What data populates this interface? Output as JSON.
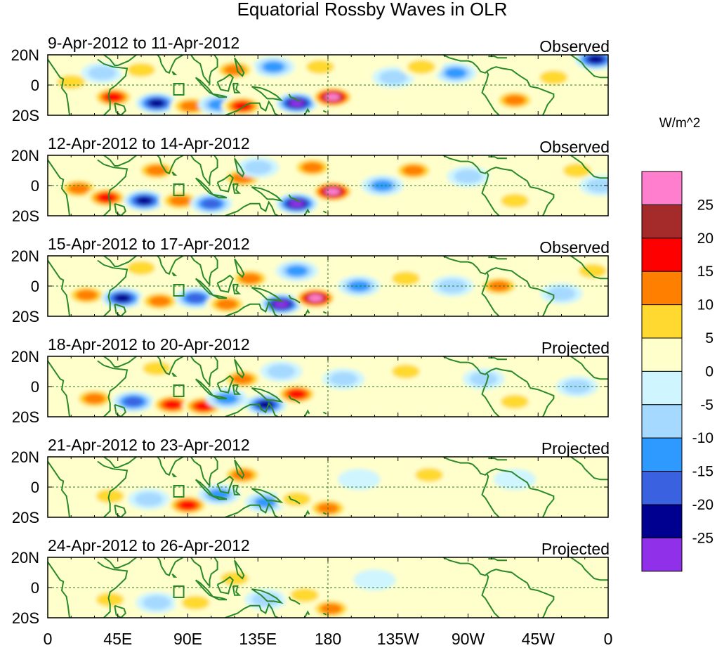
{
  "title": "Equatorial Rossby Waves in OLR",
  "units_label": "W/m^2",
  "panels": [
    {
      "date_range": "9-Apr-2012 to 11-Apr-2012",
      "type": "Observed"
    },
    {
      "date_range": "12-Apr-2012 to 14-Apr-2012",
      "type": "Observed"
    },
    {
      "date_range": "15-Apr-2012 to 17-Apr-2012",
      "type": "Observed"
    },
    {
      "date_range": "18-Apr-2012 to 20-Apr-2012",
      "type": "Projected"
    },
    {
      "date_range": "21-Apr-2012 to 23-Apr-2012",
      "type": "Projected"
    },
    {
      "date_range": "24-Apr-2012 to 26-Apr-2012",
      "type": "Projected"
    }
  ],
  "lat_labels": [
    "20N",
    "0",
    "20S"
  ],
  "lon_labels": [
    "0",
    "45E",
    "90E",
    "135E",
    "180",
    "135W",
    "90W",
    "45W",
    "0"
  ],
  "colorbar": {
    "labels": [
      "25",
      "20",
      "15",
      "10",
      "5",
      "0",
      "-5",
      "-10",
      "-15",
      "-20",
      "-25"
    ],
    "colors": [
      "#ff7fce",
      "#a52a2a",
      "#ff0000",
      "#ff7f00",
      "#ffd92f",
      "#ffffcc",
      "#cff5ff",
      "#a6d9ff",
      "#2e99ff",
      "#3a62e0",
      "#000090",
      "#9030e8"
    ]
  },
  "chart_data": {
    "type": "heatmap",
    "title": "Equatorial Rossby Waves in OLR",
    "units": "W/m^2",
    "lon_range": [
      0,
      360
    ],
    "lat_range": [
      -20,
      20
    ],
    "x_ticks": [
      "0",
      "45E",
      "90E",
      "135E",
      "180",
      "135W",
      "90W",
      "45W",
      "0"
    ],
    "y_ticks": [
      "20N",
      "0",
      "20S"
    ],
    "levels": [
      -25,
      -20,
      -15,
      -10,
      -5,
      0,
      5,
      10,
      15,
      20,
      25
    ],
    "anomalies": [
      [
        {
          "lon": 15,
          "lat": 2,
          "v": 8
        },
        {
          "lon": 35,
          "lat": 8,
          "v": -5
        },
        {
          "lon": 42,
          "lat": -8,
          "v": 16
        },
        {
          "lon": 70,
          "lat": -12,
          "v": -23
        },
        {
          "lon": 92,
          "lat": -14,
          "v": 14
        },
        {
          "lon": 110,
          "lat": -13,
          "v": -12
        },
        {
          "lon": 125,
          "lat": -14,
          "v": 15
        },
        {
          "lon": 160,
          "lat": -12,
          "v": -27
        },
        {
          "lon": 183,
          "lat": -8,
          "v": 27
        },
        {
          "lon": 175,
          "lat": 12,
          "v": 8
        },
        {
          "lon": 145,
          "lat": 12,
          "v": -10
        },
        {
          "lon": 120,
          "lat": 10,
          "v": 12
        },
        {
          "lon": 222,
          "lat": 5,
          "v": -9
        },
        {
          "lon": 262,
          "lat": 8,
          "v": -12
        },
        {
          "lon": 240,
          "lat": 12,
          "v": 8
        },
        {
          "lon": 300,
          "lat": -10,
          "v": 10
        },
        {
          "lon": 325,
          "lat": 5,
          "v": 7
        },
        {
          "lon": 352,
          "lat": 17,
          "v": -20
        },
        {
          "lon": 60,
          "lat": 10,
          "v": 8
        }
      ],
      [
        {
          "lon": 20,
          "lat": -2,
          "v": 10
        },
        {
          "lon": 38,
          "lat": -8,
          "v": 15
        },
        {
          "lon": 62,
          "lat": -10,
          "v": -22
        },
        {
          "lon": 85,
          "lat": -10,
          "v": 12
        },
        {
          "lon": 105,
          "lat": -12,
          "v": -15
        },
        {
          "lon": 125,
          "lat": 5,
          "v": 10
        },
        {
          "lon": 135,
          "lat": 12,
          "v": -6
        },
        {
          "lon": 160,
          "lat": -12,
          "v": -27
        },
        {
          "lon": 183,
          "lat": -4,
          "v": 27
        },
        {
          "lon": 170,
          "lat": 12,
          "v": 10
        },
        {
          "lon": 215,
          "lat": 0,
          "v": -12
        },
        {
          "lon": 235,
          "lat": 10,
          "v": 10
        },
        {
          "lon": 270,
          "lat": 6,
          "v": -8
        },
        {
          "lon": 300,
          "lat": -10,
          "v": 8
        },
        {
          "lon": 340,
          "lat": 10,
          "v": 6
        },
        {
          "lon": 355,
          "lat": 0,
          "v": -8
        },
        {
          "lon": 70,
          "lat": 10,
          "v": 10
        }
      ],
      [
        {
          "lon": 25,
          "lat": -6,
          "v": 13
        },
        {
          "lon": 48,
          "lat": -8,
          "v": -20
        },
        {
          "lon": 72,
          "lat": -10,
          "v": 12
        },
        {
          "lon": 95,
          "lat": -8,
          "v": -15
        },
        {
          "lon": 115,
          "lat": -12,
          "v": 12
        },
        {
          "lon": 130,
          "lat": 5,
          "v": 12
        },
        {
          "lon": 150,
          "lat": -12,
          "v": -27
        },
        {
          "lon": 172,
          "lat": -8,
          "v": 27
        },
        {
          "lon": 160,
          "lat": 10,
          "v": -12
        },
        {
          "lon": 200,
          "lat": 0,
          "v": -10
        },
        {
          "lon": 230,
          "lat": 5,
          "v": 8
        },
        {
          "lon": 260,
          "lat": 0,
          "v": -8
        },
        {
          "lon": 290,
          "lat": 0,
          "v": 10
        },
        {
          "lon": 330,
          "lat": -5,
          "v": -6
        },
        {
          "lon": 350,
          "lat": 10,
          "v": 7
        },
        {
          "lon": 60,
          "lat": 12,
          "v": 8
        }
      ],
      [
        {
          "lon": 30,
          "lat": -8,
          "v": 10
        },
        {
          "lon": 55,
          "lat": -10,
          "v": -15
        },
        {
          "lon": 80,
          "lat": -12,
          "v": 16
        },
        {
          "lon": 100,
          "lat": -13,
          "v": 18
        },
        {
          "lon": 115,
          "lat": -8,
          "v": -12
        },
        {
          "lon": 125,
          "lat": 5,
          "v": 14
        },
        {
          "lon": 140,
          "lat": -12,
          "v": -22
        },
        {
          "lon": 160,
          "lat": -5,
          "v": 18
        },
        {
          "lon": 150,
          "lat": 10,
          "v": -8
        },
        {
          "lon": 190,
          "lat": 5,
          "v": -6
        },
        {
          "lon": 230,
          "lat": 10,
          "v": 6
        },
        {
          "lon": 280,
          "lat": 5,
          "v": -5
        },
        {
          "lon": 300,
          "lat": -10,
          "v": 8
        },
        {
          "lon": 340,
          "lat": 0,
          "v": -6
        },
        {
          "lon": 70,
          "lat": 12,
          "v": 6
        }
      ],
      [
        {
          "lon": 40,
          "lat": -6,
          "v": 6
        },
        {
          "lon": 65,
          "lat": -8,
          "v": -8
        },
        {
          "lon": 90,
          "lat": -12,
          "v": 16
        },
        {
          "lon": 110,
          "lat": -5,
          "v": -10
        },
        {
          "lon": 125,
          "lat": 8,
          "v": 10
        },
        {
          "lon": 140,
          "lat": -10,
          "v": -14
        },
        {
          "lon": 160,
          "lat": -8,
          "v": 8
        },
        {
          "lon": 180,
          "lat": -14,
          "v": 10
        },
        {
          "lon": 200,
          "lat": 5,
          "v": -4
        },
        {
          "lon": 245,
          "lat": 8,
          "v": 5
        },
        {
          "lon": 300,
          "lat": 5,
          "v": -4
        },
        {
          "lon": 340,
          "lat": 5,
          "v": 4
        }
      ],
      [
        {
          "lon": 40,
          "lat": -8,
          "v": 5
        },
        {
          "lon": 70,
          "lat": -10,
          "v": -6
        },
        {
          "lon": 95,
          "lat": -10,
          "v": 9
        },
        {
          "lon": 120,
          "lat": 6,
          "v": 7
        },
        {
          "lon": 140,
          "lat": -8,
          "v": -8
        },
        {
          "lon": 165,
          "lat": -5,
          "v": 6
        },
        {
          "lon": 182,
          "lat": -14,
          "v": 14
        },
        {
          "lon": 210,
          "lat": 5,
          "v": -4
        },
        {
          "lon": 260,
          "lat": 10,
          "v": 4
        },
        {
          "lon": 320,
          "lat": -5,
          "v": 3
        }
      ]
    ]
  }
}
